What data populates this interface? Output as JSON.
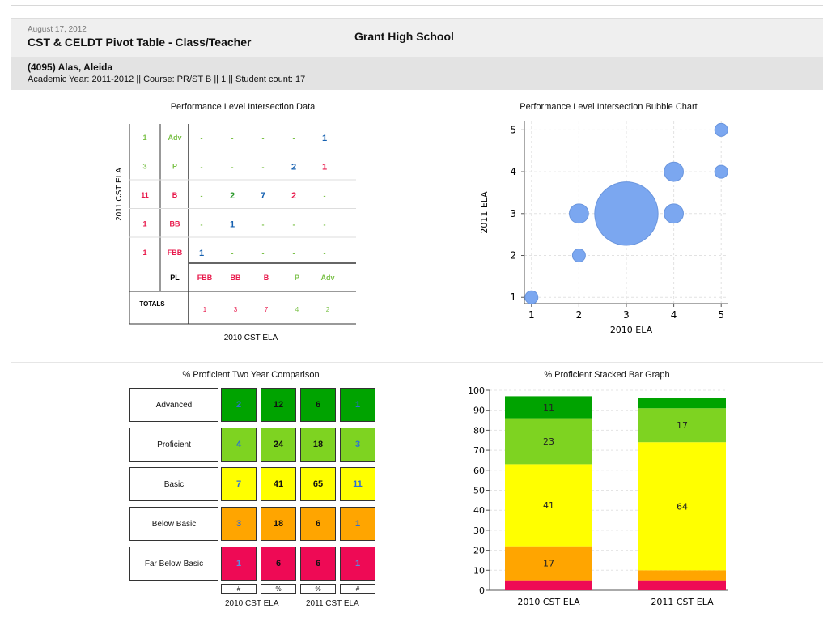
{
  "header": {
    "date": "August 17, 2012",
    "title": "CST & CELDT Pivot Table - Class/Teacher",
    "school": "Grant High School",
    "teacher": "(4095) Alas, Aleida",
    "meta": "Academic Year: 2011-2012  ||  Course: PR/ST B  ||  1  ||  Student count: 17"
  },
  "pivot": {
    "title": "Performance Level Intersection Data",
    "ylabel": "2011 CST ELA",
    "xlabel": "2010 CST ELA",
    "row_counts": [
      "1",
      "3",
      "11",
      "1",
      "1"
    ],
    "row_levels": [
      "Adv",
      "P",
      "B",
      "BB",
      "FBB"
    ],
    "row_colors": [
      "#7cc24a",
      "#7cc24a",
      "#e8194b",
      "#e8194b",
      "#e8194b"
    ],
    "matrix": [
      [
        "-",
        "-",
        "-",
        "-",
        "1"
      ],
      [
        "-",
        "-",
        "-",
        "2",
        "1"
      ],
      [
        "-",
        "2",
        "7",
        "2",
        "-"
      ],
      [
        "-",
        "1",
        "-",
        "-",
        "-"
      ],
      [
        "1",
        "-",
        "-",
        "-",
        "-"
      ]
    ],
    "pl_label": "PL",
    "col_levels": [
      "FBB",
      "BB",
      "B",
      "P",
      "Adv"
    ],
    "col_colors": [
      "#e8194b",
      "#e8194b",
      "#e8194b",
      "#7cc24a",
      "#7cc24a"
    ],
    "totals_label": "TOTALS",
    "col_totals": [
      "1",
      "3",
      "7",
      "4",
      "2"
    ]
  },
  "pct_table": {
    "title": "% Proficient Two Year Comparison",
    "rows": [
      {
        "label": "Advanced",
        "color": "#00a300",
        "values": [
          "2",
          "12",
          "6",
          "1"
        ]
      },
      {
        "label": "Proficient",
        "color": "#7ed321",
        "values": [
          "4",
          "24",
          "18",
          "3"
        ]
      },
      {
        "label": "Basic",
        "color": "#ffff00",
        "values": [
          "7",
          "41",
          "65",
          "11"
        ]
      },
      {
        "label": "Below Basic",
        "color": "#ffa500",
        "values": [
          "3",
          "18",
          "6",
          "1"
        ]
      },
      {
        "label": "Far Below Basic",
        "color": "#ee0a55",
        "values": [
          "1",
          "6",
          "6",
          "1"
        ]
      }
    ],
    "subheaders": [
      "#",
      "%",
      "%",
      "#"
    ],
    "footer": [
      "2010 CST ELA",
      "2011 CST ELA"
    ]
  },
  "chart_data": [
    {
      "type": "scatter",
      "title": "Performance Level Intersection Bubble Chart",
      "xlabel": "2010 ELA",
      "ylabel": "2011 ELA",
      "xlim": [
        0.85,
        5.15
      ],
      "ylim": [
        0.85,
        5.2
      ],
      "xticks": [
        "1",
        "2",
        "3",
        "4",
        "5"
      ],
      "yticks": [
        "1",
        "2",
        "3",
        "4",
        "5"
      ],
      "grid": true,
      "color": "#7ba7f0",
      "points": [
        {
          "x": 1,
          "y": 1,
          "size": 1
        },
        {
          "x": 2,
          "y": 2,
          "size": 1
        },
        {
          "x": 2,
          "y": 3,
          "size": 2
        },
        {
          "x": 3,
          "y": 3,
          "size": 7
        },
        {
          "x": 4,
          "y": 3,
          "size": 2
        },
        {
          "x": 4,
          "y": 4,
          "size": 2
        },
        {
          "x": 5,
          "y": 4,
          "size": 1
        },
        {
          "x": 5,
          "y": 5,
          "size": 1
        }
      ]
    },
    {
      "type": "bar",
      "stacked": true,
      "title": "% Proficient Stacked Bar Graph",
      "categories": [
        "2010 CST ELA",
        "2011 CST ELA"
      ],
      "ylim": [
        0,
        100
      ],
      "yticks": [
        "0",
        "10",
        "20",
        "30",
        "40",
        "50",
        "60",
        "70",
        "80",
        "90",
        "100"
      ],
      "grid": true,
      "series": [
        {
          "name": "Far Below Basic",
          "color": "#ee0a55",
          "values": [
            5,
            5
          ],
          "labels": [
            "",
            ""
          ]
        },
        {
          "name": "Below Basic",
          "color": "#ffa500",
          "values": [
            17,
            5
          ],
          "labels": [
            "17",
            ""
          ]
        },
        {
          "name": "Basic",
          "color": "#ffff00",
          "values": [
            41,
            64
          ],
          "labels": [
            "41",
            "64"
          ]
        },
        {
          "name": "Proficient",
          "color": "#7ed321",
          "values": [
            23,
            17
          ],
          "labels": [
            "23",
            "17"
          ]
        },
        {
          "name": "Advanced",
          "color": "#00a300",
          "values": [
            11,
            5
          ],
          "labels": [
            "11",
            ""
          ]
        }
      ]
    }
  ]
}
